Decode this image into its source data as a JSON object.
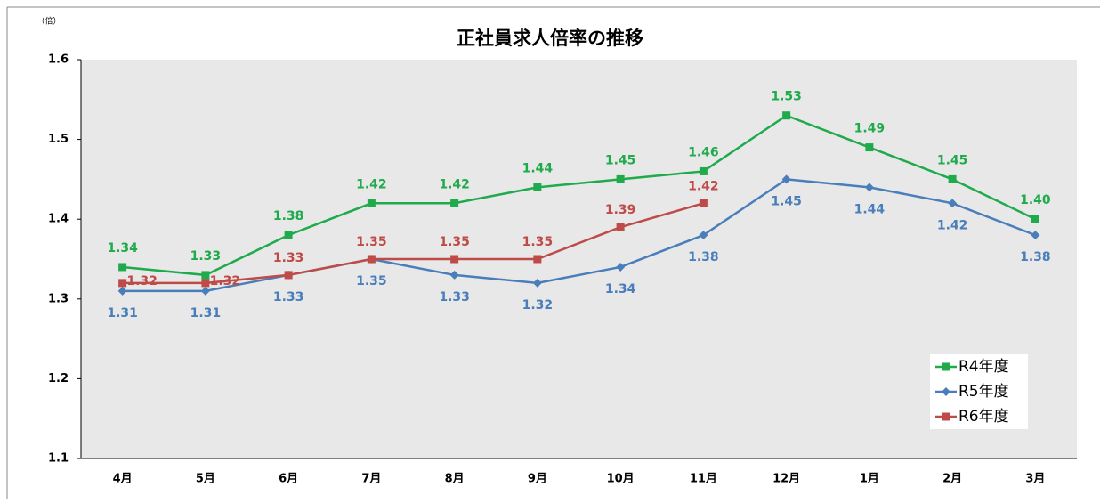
{
  "chart_data": {
    "type": "line",
    "title": "正社員求人倍率の推移",
    "y_unit": "（倍）",
    "categories": [
      "4月",
      "5月",
      "6月",
      "7月",
      "8月",
      "9月",
      "10月",
      "11月",
      "12月",
      "1月",
      "2月",
      "3月"
    ],
    "series": [
      {
        "name": "R4年度",
        "color": "#1faa4b",
        "marker": "square",
        "values": [
          1.34,
          1.33,
          1.38,
          1.42,
          1.42,
          1.44,
          1.45,
          1.46,
          1.53,
          1.49,
          1.45,
          1.4
        ],
        "value_labels": [
          "1.34",
          "1.33",
          "1.38",
          "1.42",
          "1.42",
          "1.44",
          "1.45",
          "1.46",
          "1.53",
          "1.49",
          "1.45",
          "1.40"
        ]
      },
      {
        "name": "R5年度",
        "color": "#4a7ebb",
        "marker": "diamond",
        "values": [
          1.31,
          1.31,
          1.33,
          1.35,
          1.33,
          1.32,
          1.34,
          1.38,
          1.45,
          1.44,
          1.42,
          1.38
        ],
        "value_labels": [
          "1.31",
          "1.31",
          "1.33",
          "1.35",
          "1.33",
          "1.32",
          "1.34",
          "1.38",
          "1.45",
          "1.44",
          "1.42",
          "1.38"
        ]
      },
      {
        "name": "R6年度",
        "color": "#be4b48",
        "marker": "square",
        "values": [
          1.32,
          1.32,
          1.33,
          1.35,
          1.35,
          1.35,
          1.39,
          1.42,
          null,
          null,
          null,
          null
        ],
        "value_labels": [
          "1.32",
          "1.32",
          "1.33",
          "1.35",
          "1.35",
          "1.35",
          "1.39",
          "1.42",
          null,
          null,
          null,
          null
        ]
      }
    ],
    "ylim": [
      1.1,
      1.6
    ],
    "yticks": [
      1.1,
      1.2,
      1.3,
      1.4,
      1.5,
      1.6
    ],
    "grid": false,
    "legend": "lower right"
  }
}
